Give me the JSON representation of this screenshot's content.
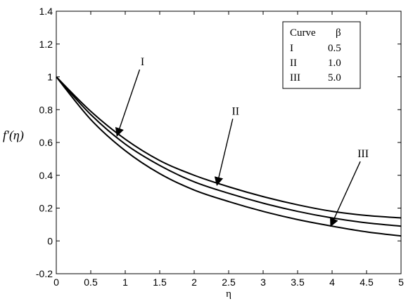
{
  "chart_data": {
    "type": "line",
    "title": "",
    "xlabel": "η",
    "ylabel": "f′(η)",
    "xlim": [
      0,
      5
    ],
    "ylim": [
      -0.2,
      1.4
    ],
    "grid": false,
    "x_ticks": [
      "0",
      "0.5",
      "1",
      "1.5",
      "2",
      "2.5",
      "3",
      "3.5",
      "4",
      "4.5",
      "5"
    ],
    "y_ticks": [
      "-0.2",
      "0",
      "0.2",
      "0.4",
      "0.6",
      "0.8",
      "1",
      "1.2",
      "1.4"
    ],
    "x": [
      0,
      0.5,
      1,
      1.5,
      2,
      2.5,
      3,
      3.5,
      4,
      4.5,
      5
    ],
    "series": [
      {
        "name": "I",
        "values": [
          1.0,
          0.79,
          0.62,
          0.49,
          0.4,
          0.33,
          0.27,
          0.22,
          0.18,
          0.155,
          0.14
        ]
      },
      {
        "name": "II",
        "values": [
          1.0,
          0.77,
          0.59,
          0.46,
          0.36,
          0.29,
          0.23,
          0.18,
          0.14,
          0.11,
          0.09
        ]
      },
      {
        "name": "III",
        "values": [
          1.0,
          0.74,
          0.55,
          0.41,
          0.31,
          0.24,
          0.18,
          0.13,
          0.09,
          0.055,
          0.03
        ]
      }
    ],
    "line_color": "#000000",
    "annotations": [
      {
        "label": "I",
        "text_x": 1.25,
        "text_y": 1.07,
        "arrow_to_x": 0.88,
        "arrow_to_y": 0.64
      },
      {
        "label": "II",
        "text_x": 2.6,
        "text_y": 0.77,
        "arrow_to_x": 2.33,
        "arrow_to_y": 0.34
      },
      {
        "label": "III",
        "text_x": 4.45,
        "text_y": 0.51,
        "arrow_to_x": 3.98,
        "arrow_to_y": 0.09
      }
    ],
    "legend": {
      "placement": "top-right",
      "header": [
        "Curve",
        "β"
      ],
      "rows": [
        [
          "I",
          "0.5"
        ],
        [
          "II",
          "1.0"
        ],
        [
          "III",
          "5.0"
        ]
      ]
    }
  }
}
